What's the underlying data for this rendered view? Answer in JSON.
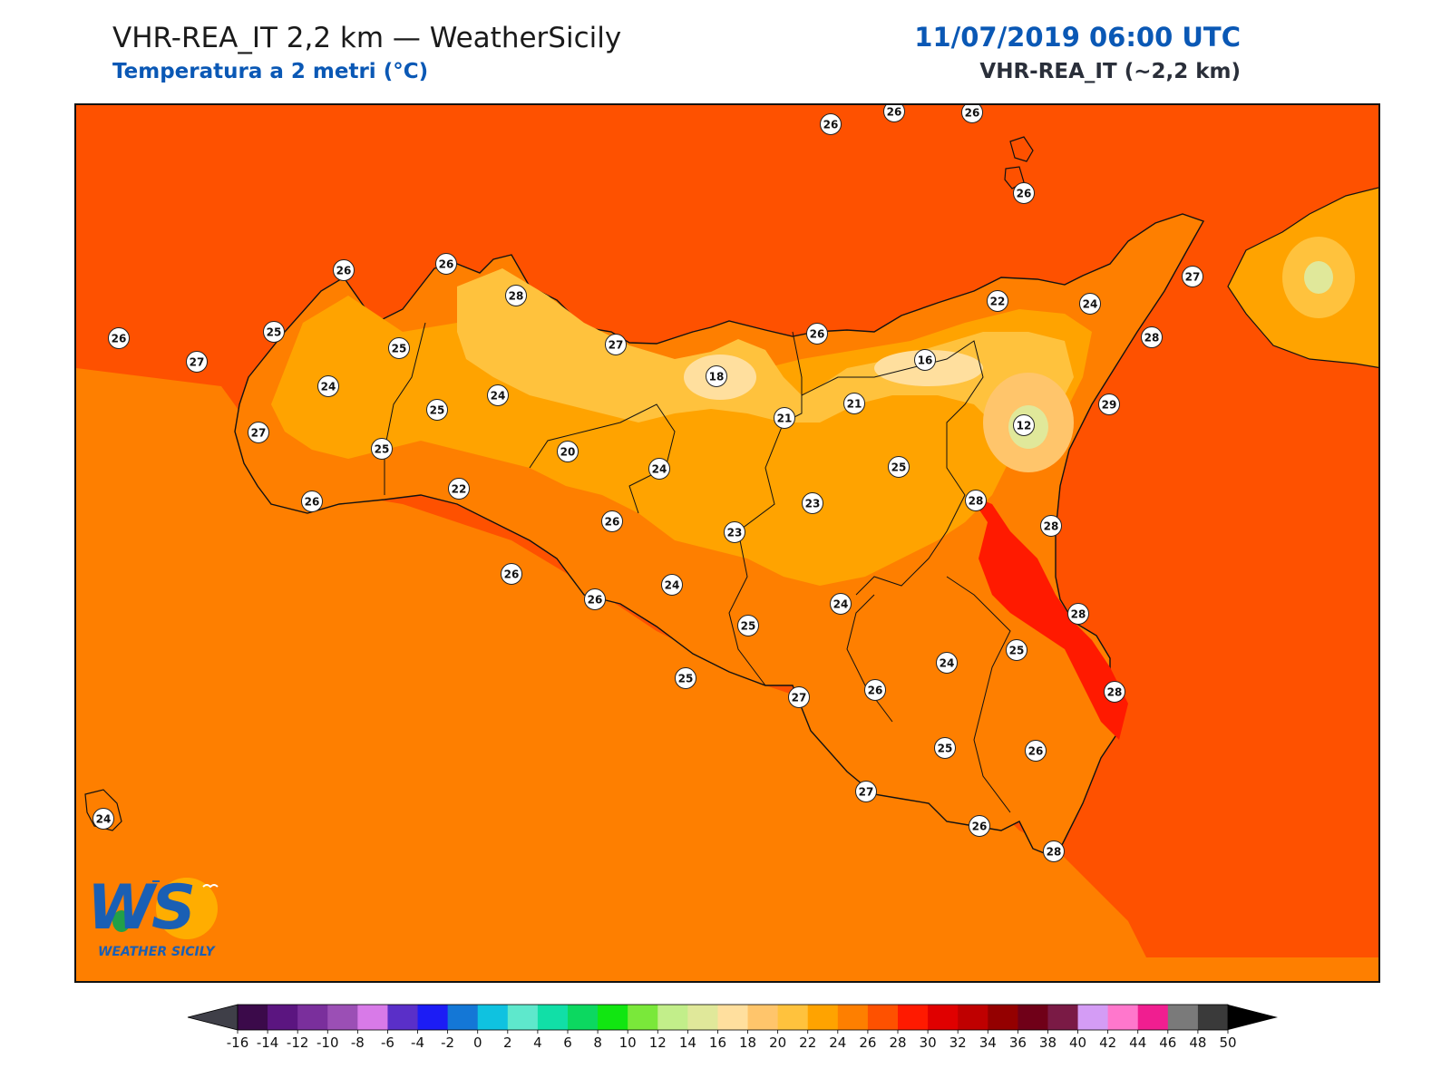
{
  "header": {
    "title_left": "VHR-REA_IT 2,2 km — WeatherSicily",
    "subtitle_left": "Temperatura a 2 metri (°C)",
    "title_right": "11/07/2019 06:00 UTC",
    "subtitle_right": "VHR-REA_IT (~2,2 km)"
  },
  "logo": {
    "letters": "WS",
    "caption": "WEATHER SICILY"
  },
  "stations": [
    {
      "value": "26"
    },
    {
      "value": "26"
    },
    {
      "value": "26"
    },
    {
      "value": "26"
    },
    {
      "value": "26"
    },
    {
      "value": "26"
    },
    {
      "value": "28"
    },
    {
      "value": "25"
    },
    {
      "value": "26"
    },
    {
      "value": "27"
    },
    {
      "value": "25"
    },
    {
      "value": "24"
    },
    {
      "value": "25"
    },
    {
      "value": "24"
    },
    {
      "value": "27"
    },
    {
      "value": "25"
    },
    {
      "value": "22"
    },
    {
      "value": "26"
    },
    {
      "value": "20"
    },
    {
      "value": "27"
    },
    {
      "value": "18"
    },
    {
      "value": "26"
    },
    {
      "value": "21"
    },
    {
      "value": "21"
    },
    {
      "value": "16"
    },
    {
      "value": "22"
    },
    {
      "value": "24"
    },
    {
      "value": "27"
    },
    {
      "value": "28"
    },
    {
      "value": "29"
    },
    {
      "value": "12"
    },
    {
      "value": "25"
    },
    {
      "value": "24"
    },
    {
      "value": "23"
    },
    {
      "value": "23"
    },
    {
      "value": "26"
    },
    {
      "value": "28"
    },
    {
      "value": "28"
    },
    {
      "value": "26"
    },
    {
      "value": "24"
    },
    {
      "value": "26"
    },
    {
      "value": "24"
    },
    {
      "value": "25"
    },
    {
      "value": "28"
    },
    {
      "value": "25"
    },
    {
      "value": "24"
    },
    {
      "value": "26"
    },
    {
      "value": "25"
    },
    {
      "value": "28"
    },
    {
      "value": "27"
    },
    {
      "value": "25"
    },
    {
      "value": "26"
    },
    {
      "value": "27"
    },
    {
      "value": "26"
    },
    {
      "value": "28"
    },
    {
      "value": "24"
    }
  ],
  "colorbar": {
    "ticks": [
      "-16",
      "-14",
      "-12",
      "-10",
      "-8",
      "-6",
      "-4",
      "-2",
      "0",
      "2",
      "4",
      "6",
      "8",
      "10",
      "12",
      "14",
      "16",
      "18",
      "20",
      "22",
      "24",
      "26",
      "28",
      "30",
      "32",
      "34",
      "36",
      "38",
      "40",
      "42",
      "44",
      "46",
      "48",
      "50"
    ],
    "colors": [
      "#3b0a4a",
      "#5b1580",
      "#7a2f9c",
      "#9b4fb5",
      "#d87ae8",
      "#5a2fc8",
      "#1c1cf5",
      "#1477d6",
      "#0fc2e0",
      "#5ee8cc",
      "#11dfa7",
      "#0cd860",
      "#11e611",
      "#7ae83a",
      "#c2ee8a",
      "#e0e89a",
      "#ffdf9e",
      "#ffc56b",
      "#ffc23d",
      "#ffa300",
      "#fe7f00",
      "#fe5100",
      "#ff1a00",
      "#e00000",
      "#bf0000",
      "#940000",
      "#700018",
      "#7a1a45",
      "#d49cf5",
      "#ff77cc",
      "#f01e90",
      "#7a7a7a",
      "#3a3a3a"
    ],
    "under_color": "#3f3f48",
    "over_color": "#000000"
  }
}
